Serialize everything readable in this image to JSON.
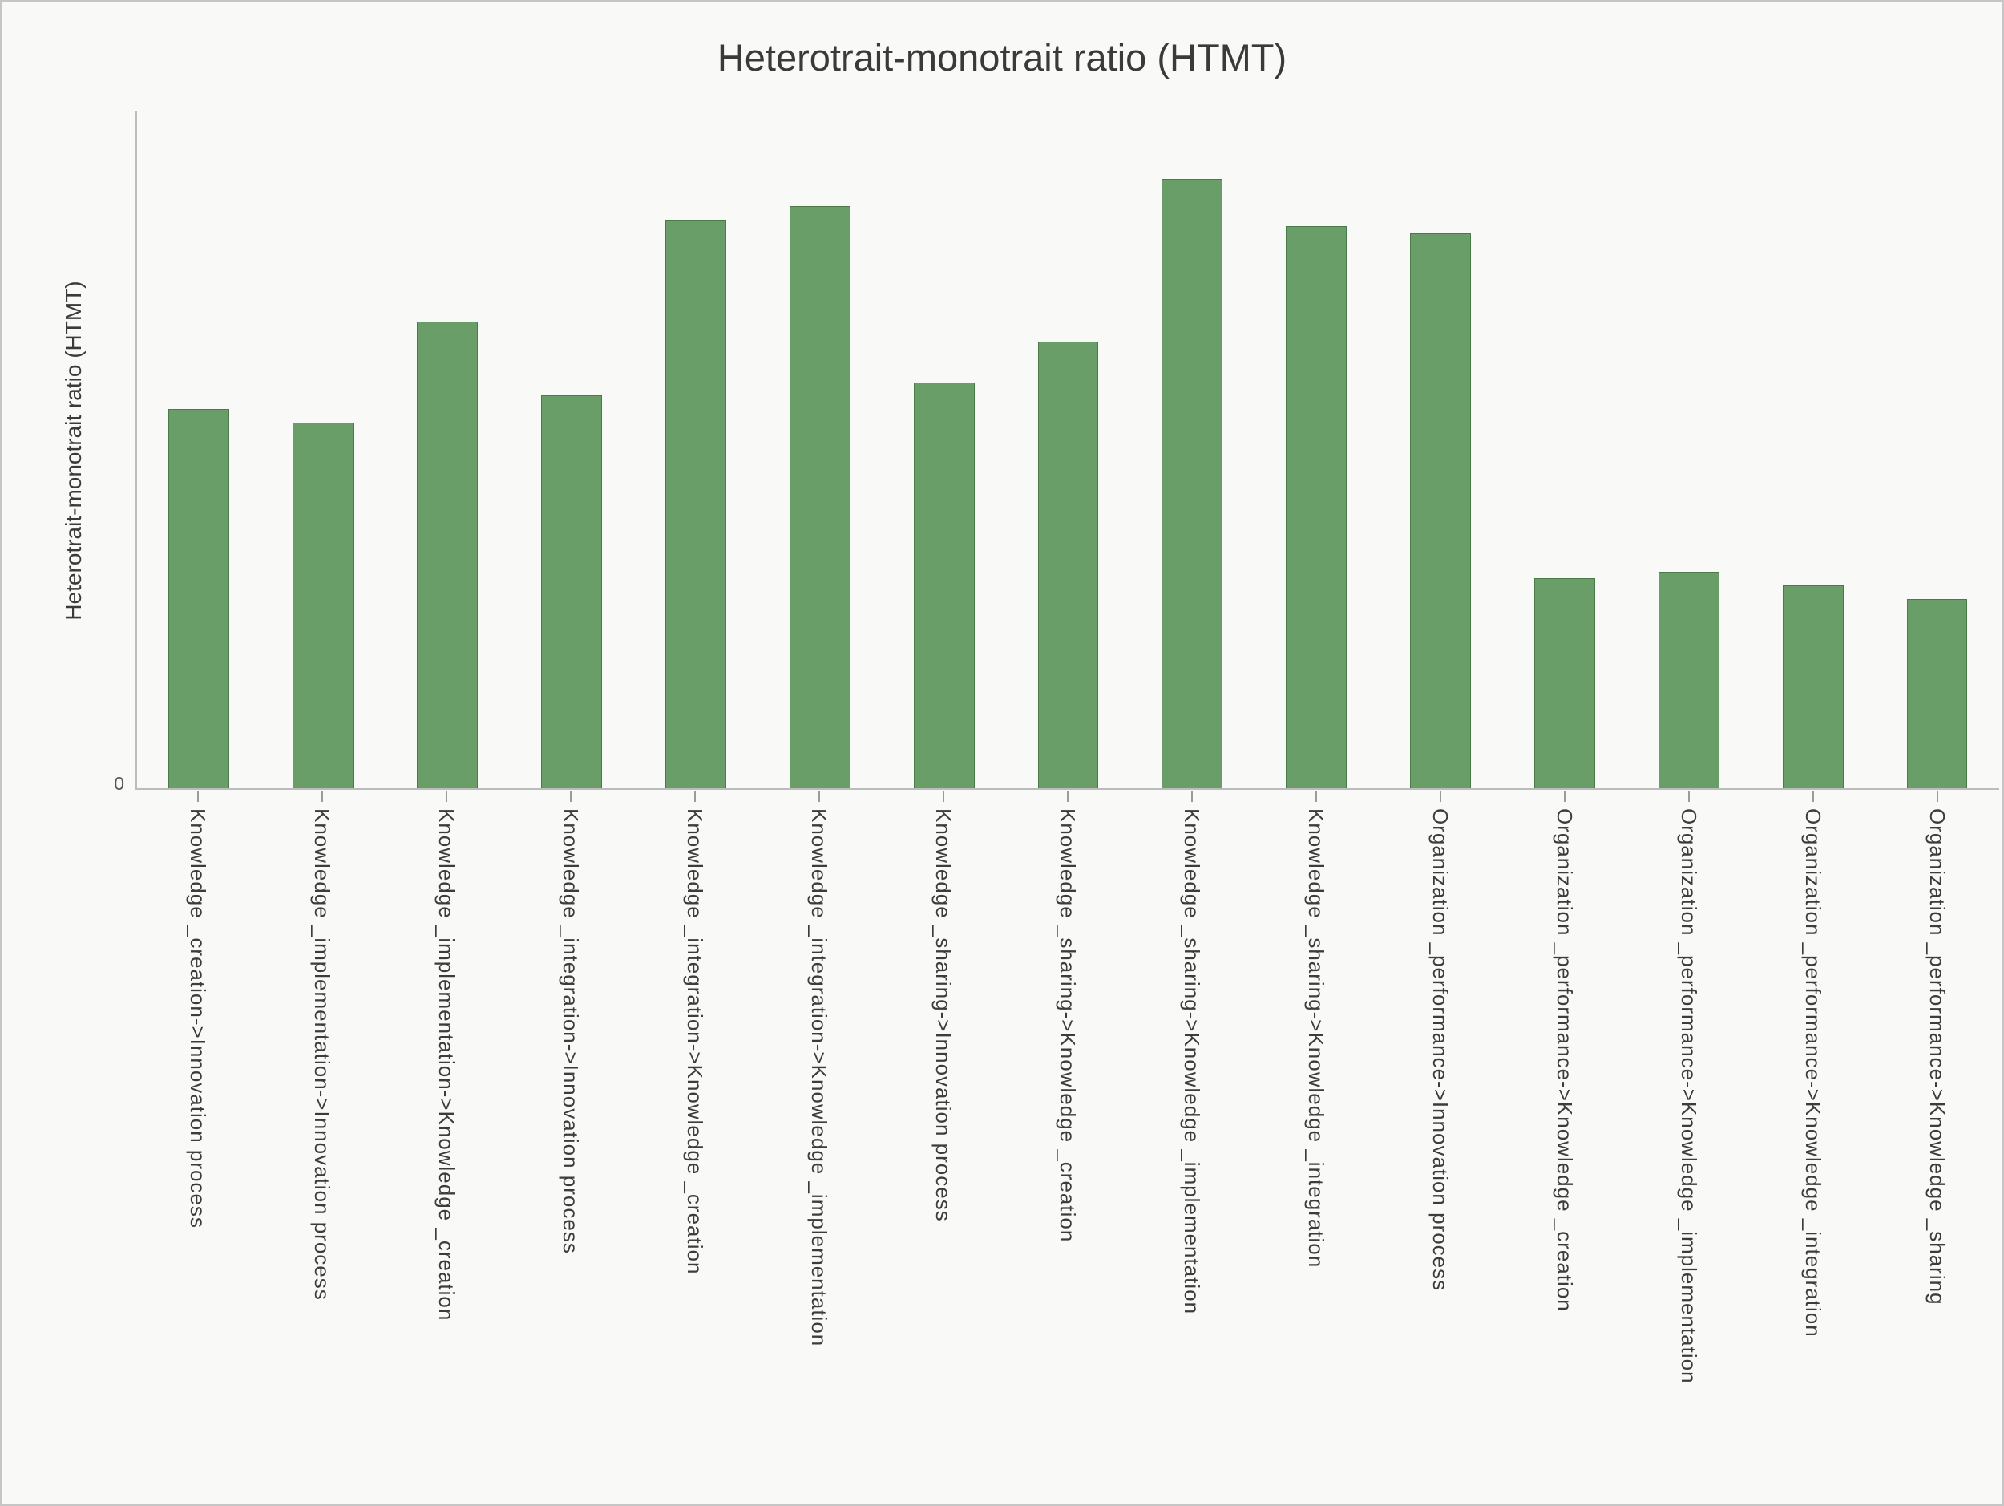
{
  "chart_data": {
    "type": "bar",
    "title": "Heterotrait-monotrait ratio (HTMT)",
    "xlabel": "",
    "ylabel": "Heterotrait-monotrait ratio (HTMT)",
    "ylim": [
      0,
      1.0
    ],
    "y_tick_labels": [
      "0"
    ],
    "grid": false,
    "legend": "none",
    "categories": [
      "Knowledge _creation->Innovation process",
      "Knowledge _implementation->Innovation process",
      "Knowledge _implementation->Knowledge _creation",
      "Knowledge _integration->Innovation process",
      "Knowledge _integration->Knowledge _creation",
      "Knowledge _integration->Knowledge _implementation",
      "Knowledge _sharing->Innovation process",
      "Knowledge _sharing->Knowledge _creation",
      "Knowledge _sharing->Knowledge _implementation",
      "Knowledge _sharing->Knowledge _integration",
      "Organization _performance->Innovation process",
      "Organization _performance->Knowledge _creation",
      "Organization _performance->Knowledge _implementation",
      "Organization _performance->Knowledge _integration",
      "Organization _performance->Knowledge _sharing"
    ],
    "values": [
      0.56,
      0.54,
      0.69,
      0.58,
      0.84,
      0.86,
      0.6,
      0.66,
      0.9,
      0.83,
      0.82,
      0.31,
      0.32,
      0.3,
      0.28
    ],
    "colors": {
      "bar_fill": "#6a9e69",
      "bar_border": "#4a7a4a",
      "axis": "#bcbcbc",
      "text": "#3a3a3a",
      "background": "#f9f9f8"
    }
  }
}
